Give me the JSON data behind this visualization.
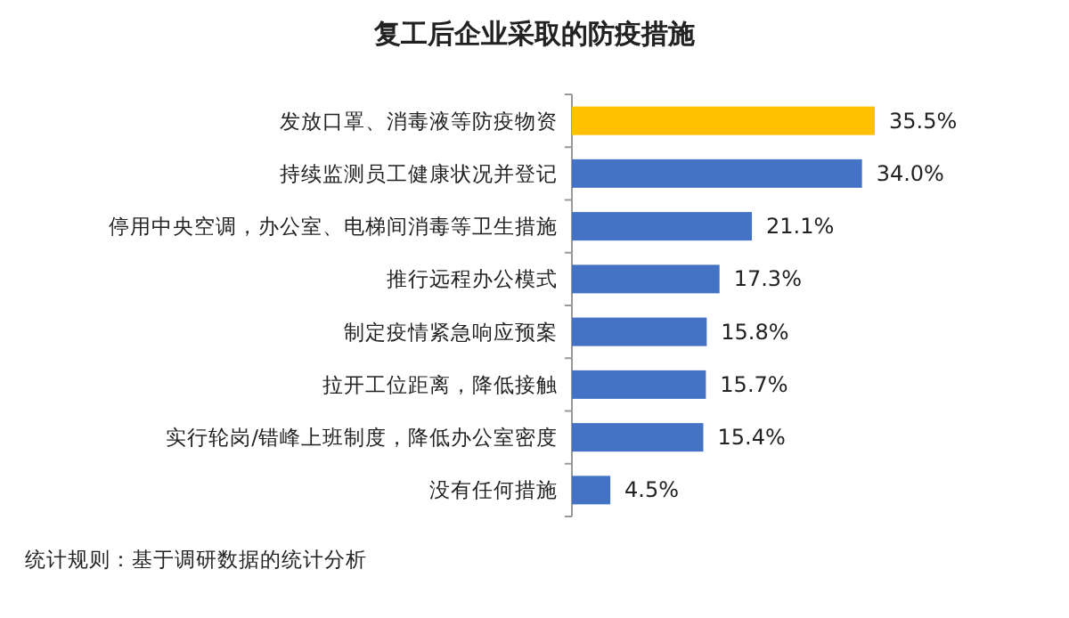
{
  "chart_data": {
    "type": "bar",
    "orientation": "horizontal",
    "title": "复工后企业采取的防疫措施",
    "categories": [
      "发放口罩、消毒液等防疫物资",
      "持续监测员工健康状况并登记",
      "停用中央空调，办公室、电梯间消毒等卫生措施",
      "推行远程办公模式",
      "制定疫情紧急响应预案",
      "拉开工位距离，降低接触",
      "实行轮岗/错峰上班制度，降低办公室密度",
      "没有任何措施"
    ],
    "values": [
      35.5,
      34.0,
      21.1,
      17.3,
      15.8,
      15.7,
      15.4,
      4.5
    ],
    "colors": [
      "#ffc000",
      "#4472c4",
      "#4472c4",
      "#4472c4",
      "#4472c4",
      "#4472c4",
      "#4472c4",
      "#4472c4"
    ],
    "value_labels": [
      "35.5%",
      "34.0%",
      "21.1%",
      "17.3%",
      "15.8%",
      "15.7%",
      "15.4%",
      "4.5%"
    ],
    "annotations": [
      "统计规则：基于调研数据的统计分析"
    ]
  }
}
